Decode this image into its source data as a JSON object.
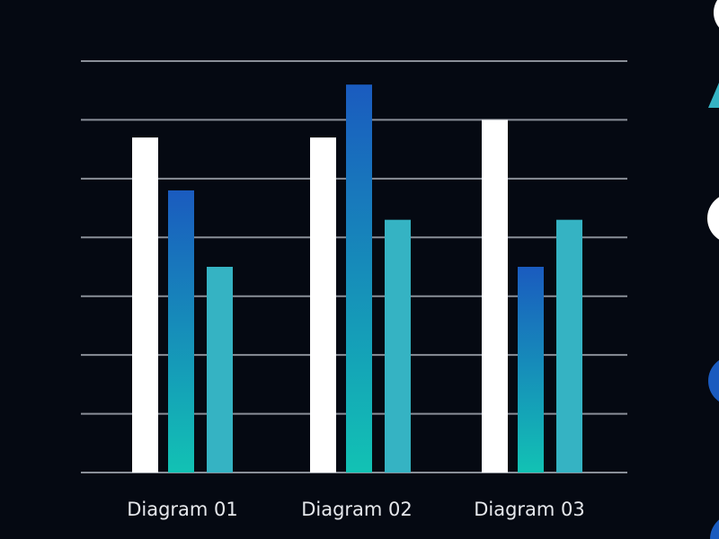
{
  "chart_data": {
    "type": "bar",
    "title": "",
    "xlabel": "",
    "ylabel": "",
    "categories": [
      "Diagram 01",
      "Diagram 02",
      "Diagram 03"
    ],
    "ylim": [
      0,
      7
    ],
    "grid": true,
    "series": [
      {
        "values": [
          5.7,
          5.7,
          6.0
        ],
        "color": "#ffffff"
      },
      {
        "values": [
          4.8,
          6.6,
          3.5
        ],
        "color_top": "#1a5bbf",
        "color_bottom": "#12c2b4"
      },
      {
        "values": [
          3.5,
          4.3,
          4.3
        ],
        "color": "#35b3c3"
      }
    ]
  },
  "decorations": {
    "right_edge_shape_colors": [
      "#ffffff",
      "#35b3c3",
      "#ffffff",
      "#1a5bbf",
      "#1a5bbf"
    ]
  }
}
